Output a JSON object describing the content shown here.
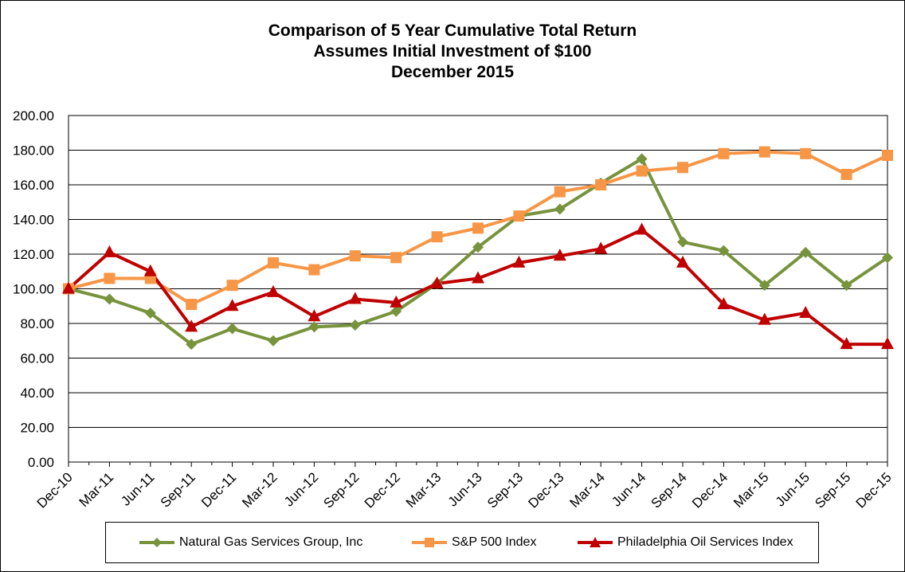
{
  "chart_data": {
    "type": "line",
    "title": [
      "Comparison of 5 Year Cumulative Total Return",
      "Assumes Initial Investment of $100",
      "December 2015"
    ],
    "categories": [
      "Dec-10",
      "Mar-11",
      "Jun-11",
      "Sep-11",
      "Dec-11",
      "Mar-12",
      "Jun-12",
      "Sep-12",
      "Dec-12",
      "Mar-13",
      "Jun-13",
      "Sep-13",
      "Dec-13",
      "Mar-14",
      "Jun-14",
      "Sep-14",
      "Dec-14",
      "Mar-15",
      "Jun-15",
      "Sep-15",
      "Dec-15"
    ],
    "ylim": [
      0,
      200
    ],
    "yticks": [
      "0.00",
      "20.00",
      "40.00",
      "60.00",
      "80.00",
      "100.00",
      "120.00",
      "140.00",
      "160.00",
      "180.00",
      "200.00"
    ],
    "grid": true,
    "legend_position": "bottom",
    "series": [
      {
        "name": "Natural Gas Services Group, Inc",
        "color": "#77933c",
        "marker": "diamond",
        "values": [
          100,
          94,
          86,
          68,
          77,
          70,
          78,
          79,
          87,
          103,
          124,
          142,
          146,
          161,
          175,
          127,
          122,
          102,
          121,
          102,
          118
        ]
      },
      {
        "name": "S&P 500 Index",
        "color": "#f79646",
        "marker": "square",
        "values": [
          100,
          106,
          106,
          91,
          102,
          115,
          111,
          119,
          118,
          130,
          135,
          142,
          156,
          160,
          168,
          170,
          178,
          179,
          178,
          166,
          177
        ]
      },
      {
        "name": "Philadelphia Oil Services Index",
        "color": "#c00000",
        "marker": "triangle",
        "values": [
          100,
          121,
          110,
          78,
          90,
          98,
          84,
          94,
          92,
          103,
          106,
          115,
          119,
          123,
          134,
          115,
          91,
          82,
          86,
          68,
          68
        ]
      }
    ]
  }
}
